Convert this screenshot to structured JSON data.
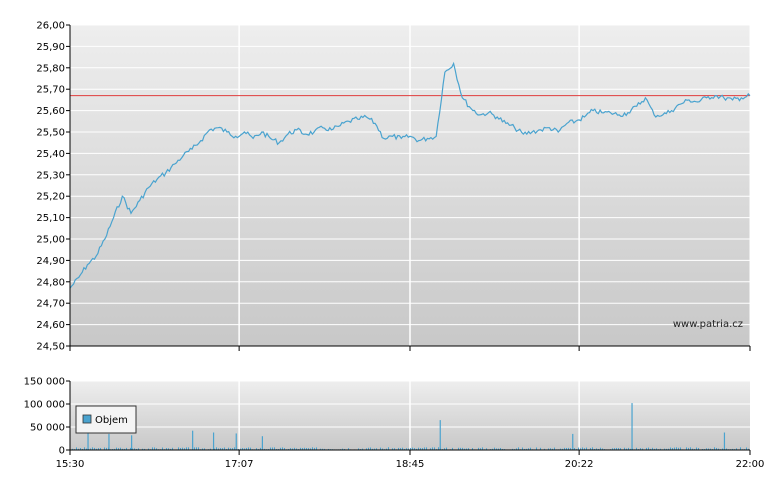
{
  "watermark": "www.patria.cz",
  "colors": {
    "price_line": "#4aa3cf",
    "reference_line": "#e03c3c",
    "volume_bar": "#4aa3cf",
    "grid": "#ffffff",
    "plot_bg_top": "#eeeeee",
    "plot_bg_bottom": "#c8c8c8"
  },
  "chart_data": [
    {
      "type": "line",
      "name": "price",
      "x_ticks": [
        "15:30",
        "17:07",
        "18:45",
        "20:22",
        "22:00"
      ],
      "y_ticks": [
        "24,50",
        "24,60",
        "24,70",
        "24,80",
        "24,90",
        "25,00",
        "25,10",
        "25,20",
        "25,30",
        "25,40",
        "25,50",
        "25,60",
        "25,70",
        "25,80",
        "25,90",
        "26,00"
      ],
      "ylim": [
        24.5,
        26.0
      ],
      "xlim": [
        "15:30",
        "22:00"
      ],
      "reference_value": 25.67,
      "grid": true,
      "series": [
        {
          "x": [
            "15:30",
            "15:35",
            "15:40",
            "15:45",
            "15:50",
            "15:55",
            "16:00",
            "16:05",
            "16:10",
            "16:15",
            "16:20",
            "16:25",
            "16:30",
            "16:35",
            "16:40",
            "16:45",
            "16:50",
            "16:55",
            "17:00",
            "17:05",
            "17:10",
            "17:15",
            "17:20",
            "17:25",
            "17:30",
            "17:35",
            "17:40",
            "17:45",
            "17:50",
            "17:55",
            "18:00",
            "18:05",
            "18:10",
            "18:15",
            "18:20",
            "18:25",
            "18:30",
            "18:35",
            "18:40",
            "18:45",
            "18:50",
            "18:55",
            "19:00",
            "19:05",
            "19:10",
            "19:15",
            "19:20",
            "19:25",
            "19:30",
            "19:35",
            "19:40",
            "19:45",
            "19:50",
            "19:55",
            "20:00",
            "20:05",
            "20:10",
            "20:15",
            "20:20",
            "20:25",
            "20:30",
            "20:35",
            "20:40",
            "20:45",
            "20:50",
            "20:55",
            "21:00",
            "21:05",
            "21:10",
            "21:15",
            "21:20",
            "21:25",
            "21:30",
            "21:35",
            "21:40",
            "21:45",
            "21:50",
            "21:55",
            "22:00"
          ],
          "y": [
            24.77,
            24.82,
            24.88,
            24.92,
            25.0,
            25.1,
            25.2,
            25.12,
            25.18,
            25.24,
            25.28,
            25.31,
            25.35,
            25.39,
            25.42,
            25.46,
            25.51,
            25.52,
            25.5,
            25.48,
            25.5,
            25.47,
            25.5,
            25.47,
            25.45,
            25.49,
            25.51,
            25.49,
            25.5,
            25.52,
            25.51,
            25.53,
            25.55,
            25.56,
            25.57,
            25.54,
            25.47,
            25.48,
            25.47,
            25.48,
            25.46,
            25.47,
            25.48,
            25.78,
            25.82,
            25.66,
            25.61,
            25.58,
            25.59,
            25.57,
            25.54,
            25.52,
            25.49,
            25.5,
            25.51,
            25.52,
            25.5,
            25.54,
            25.55,
            25.57,
            25.6,
            25.59,
            25.59,
            25.58,
            25.59,
            25.62,
            25.66,
            25.58,
            25.58,
            25.6,
            25.63,
            25.65,
            25.64,
            25.66,
            25.67,
            25.66,
            25.65,
            25.66,
            25.67
          ]
        }
      ]
    },
    {
      "type": "bar",
      "name": "volume",
      "legend": "Objem",
      "y_ticks": [
        "0",
        "50 000",
        "100 000",
        "150 000"
      ],
      "ylim": [
        0,
        150000
      ],
      "grid": true,
      "spikes": [
        {
          "x": "15:40",
          "value": 38000
        },
        {
          "x": "15:52",
          "value": 35000
        },
        {
          "x": "16:05",
          "value": 32000
        },
        {
          "x": "16:40",
          "value": 42000
        },
        {
          "x": "16:52",
          "value": 38000
        },
        {
          "x": "17:05",
          "value": 36000
        },
        {
          "x": "17:20",
          "value": 30000
        },
        {
          "x": "19:02",
          "value": 65000
        },
        {
          "x": "20:18",
          "value": 35000
        },
        {
          "x": "20:52",
          "value": 102000
        },
        {
          "x": "21:45",
          "value": 38000
        }
      ],
      "baseline_level": 4000
    }
  ]
}
